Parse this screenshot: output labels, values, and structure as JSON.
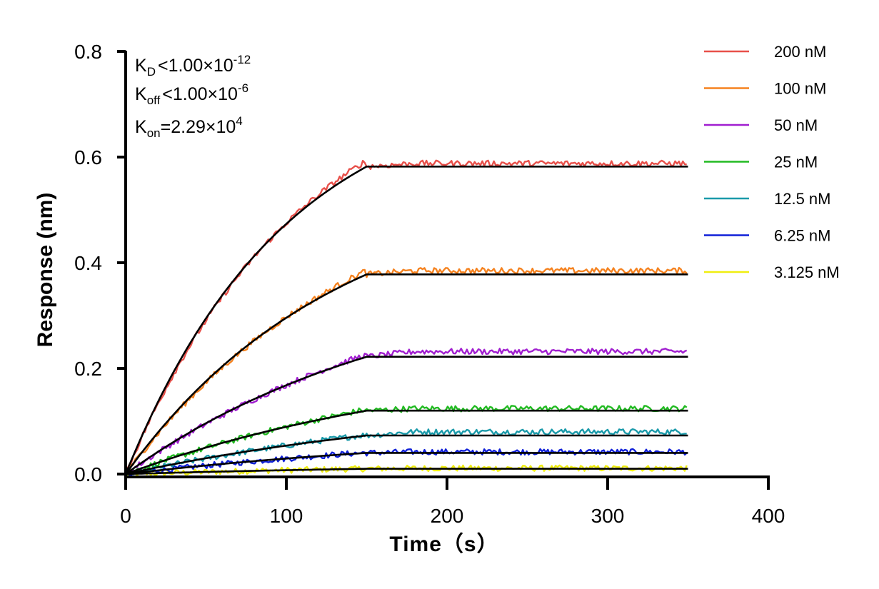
{
  "chart_data": {
    "type": "line",
    "title": "",
    "xlabel": "Time（s）",
    "ylabel": "Response (nm)",
    "xlim": [
      0,
      400
    ],
    "ylim": [
      0,
      0.8
    ],
    "x_ticks": [
      "0",
      "100",
      "200",
      "300",
      "400"
    ],
    "y_ticks": [
      "0.0",
      "0.2",
      "0.4",
      "0.6",
      "0.8"
    ],
    "grid": false,
    "legend_position": "top-right",
    "association_end_s": 150,
    "end_time_s": 350,
    "annotations": {
      "kd": {
        "main": "K",
        "sub": "D",
        "rel": "<",
        "mantissa": "1.00×10",
        "exp": "-12"
      },
      "koff": {
        "main": "K",
        "sub": "off",
        "rel": "<",
        "mantissa": "1.00×10",
        "exp": "-6"
      },
      "kon": {
        "main": "K",
        "sub": "on",
        "rel": "=",
        "mantissa": "2.29×10",
        "exp": "4"
      }
    },
    "fit_color": "#000000",
    "series": [
      {
        "name": "200 nM",
        "color": "#e8504a",
        "plateau": 0.582,
        "shape": 1.0,
        "measured_end": 0.588
      },
      {
        "name": "100 nM",
        "color": "#f5821f",
        "plateau": 0.378,
        "shape": 0.6,
        "measured_end": 0.385
      },
      {
        "name": "50 nM",
        "color": "#a11fd0",
        "plateau": 0.222,
        "shape": 0.3,
        "measured_end": 0.232
      },
      {
        "name": "25 nM",
        "color": "#22bb22",
        "plateau": 0.12,
        "shape": 0.15,
        "measured_end": 0.124
      },
      {
        "name": "12.5 nM",
        "color": "#1a9aaa",
        "plateau": 0.073,
        "shape": 0.08,
        "measured_end": 0.08
      },
      {
        "name": "6.25 nM",
        "color": "#1020d8",
        "plateau": 0.04,
        "shape": 0.04,
        "measured_end": 0.042
      },
      {
        "name": "3.125 nM",
        "color": "#f0ee10",
        "plateau": 0.01,
        "shape": 0.02,
        "measured_end": 0.011
      }
    ]
  }
}
